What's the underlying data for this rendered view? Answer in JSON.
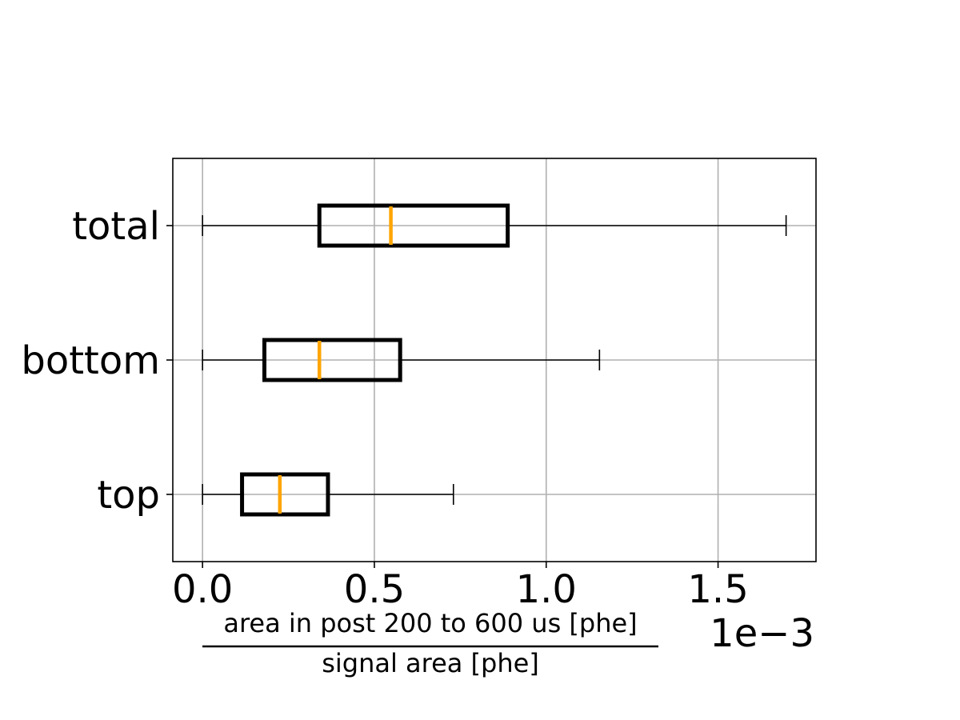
{
  "chart_data": {
    "type": "boxplot",
    "orientation": "horizontal",
    "title": "",
    "categories": [
      "top",
      "bottom",
      "total"
    ],
    "boxes": [
      {
        "label": "top",
        "whisker_low": 0.0,
        "q1": 0.000115,
        "median": 0.000225,
        "q3": 0.000365,
        "whisker_high": 0.00073
      },
      {
        "label": "bottom",
        "whisker_low": 0.0,
        "q1": 0.00018,
        "median": 0.00034,
        "q3": 0.000575,
        "whisker_high": 0.001155
      },
      {
        "label": "total",
        "whisker_low": 0.0,
        "q1": 0.00034,
        "median": 0.000548,
        "q3": 0.000888,
        "whisker_high": 0.001698
      }
    ],
    "xlabel_numerator": "area in post 200 to 600 us [phe]",
    "xlabel_denominator": "signal area [phe]",
    "x_offset_text": "1e−3",
    "x_scale": 0.001,
    "xticks": [
      0.0,
      0.0005,
      0.001,
      0.0015
    ],
    "xtick_labels": [
      "0.0",
      "0.5",
      "1.0",
      "1.5"
    ],
    "xlim": [
      -8.65e-05,
      0.001785
    ],
    "grid": true,
    "colors": {
      "box": "#000000",
      "median": "#ffa500",
      "grid": "#b0b0b0",
      "whisker": "#000000"
    }
  }
}
